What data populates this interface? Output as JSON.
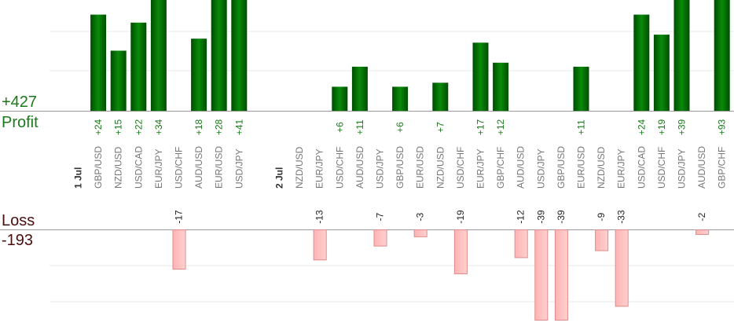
{
  "summary": {
    "profit_total": "+427",
    "profit_label": "Profit",
    "loss_label": "Loss",
    "loss_total": "-193"
  },
  "colors": {
    "profit_bar_dark": "#004d00",
    "profit_bar_light": "#0a8a0a",
    "profit_text": "#1a7a1a",
    "loss_bar": "#ffb3b3",
    "loss_bar_border": "#e08a8a",
    "grid": "#e8e8e8",
    "axis": "#999999",
    "category_text": "#777777",
    "date_text": "#333333"
  },
  "chart_data": {
    "type": "bar",
    "y_axis_range": [
      -39,
      41
    ],
    "grid": true,
    "slots": [
      {
        "kind": "date",
        "label": "1 Jul"
      },
      {
        "kind": "pair",
        "label": "GBP/USD",
        "value": 24
      },
      {
        "kind": "pair",
        "label": "NZD/USD",
        "value": 15
      },
      {
        "kind": "pair",
        "label": "USD/CAD",
        "value": 22
      },
      {
        "kind": "pair",
        "label": "EUR/JPY",
        "value": 34
      },
      {
        "kind": "pair",
        "label": "USD/CHF",
        "value": -17
      },
      {
        "kind": "pair",
        "label": "AUD/USD",
        "value": 18
      },
      {
        "kind": "pair",
        "label": "EUR/USD",
        "value": 28
      },
      {
        "kind": "pair",
        "label": "USD/JPY",
        "value": 41
      },
      {
        "kind": "gap"
      },
      {
        "kind": "date",
        "label": "2 Jul"
      },
      {
        "kind": "pair",
        "label": "NZD/USD",
        "value": null
      },
      {
        "kind": "pair",
        "label": "EUR/JPY",
        "value": -13
      },
      {
        "kind": "pair",
        "label": "USD/CHF",
        "value": 6
      },
      {
        "kind": "pair",
        "label": "AUD/USD",
        "value": 11
      },
      {
        "kind": "pair",
        "label": "USD/JPY",
        "value": -7
      },
      {
        "kind": "pair",
        "label": "GBP/USD",
        "value": 6
      },
      {
        "kind": "pair",
        "label": "EUR/USD",
        "value": -3
      },
      {
        "kind": "pair",
        "label": "NZD/USD",
        "value": 7
      },
      {
        "kind": "pair",
        "label": "USD/CHF",
        "value": -19
      },
      {
        "kind": "pair",
        "label": "EUR/JPY",
        "value": 17
      },
      {
        "kind": "pair",
        "label": "GBP/CHF",
        "value": 12
      },
      {
        "kind": "pair",
        "label": "AUD/USD",
        "value": -12
      },
      {
        "kind": "pair",
        "label": "USD/JPY",
        "value": -39
      },
      {
        "kind": "pair",
        "label": "GBP/USD",
        "value": -39
      },
      {
        "kind": "pair",
        "label": "EUR/USD",
        "value": 11
      },
      {
        "kind": "pair",
        "label": "NZD/USD",
        "value": -9
      },
      {
        "kind": "pair",
        "label": "EUR/JPY",
        "value": -33
      },
      {
        "kind": "pair",
        "label": "USD/CAD",
        "value": 24
      },
      {
        "kind": "pair",
        "label": "USD/CHF",
        "value": 19
      },
      {
        "kind": "pair",
        "label": "USD/JPY",
        "value": 39
      },
      {
        "kind": "pair",
        "label": "AUD/USD",
        "value": -2
      },
      {
        "kind": "pair",
        "label": "GBP/CHF",
        "value": 93
      }
    ]
  }
}
